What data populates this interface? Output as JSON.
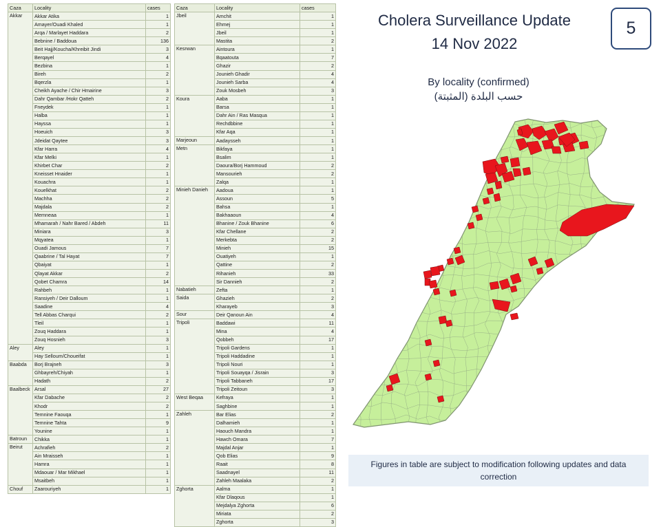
{
  "title": {
    "line1": "Cholera Surveillance Update",
    "line2": "14 Nov 2022"
  },
  "page_number": "5",
  "subtitle": {
    "en": "By locality (confirmed)",
    "ar": "حسب البلدة (المثبتة)"
  },
  "note": "Figures in table are subject to modification following updates and data correction",
  "colors": {
    "affected": "#e8161d",
    "unaffected": "#c6ef9b",
    "border": "#8c9d7c"
  },
  "table_headers": [
    "Caza",
    "Locality",
    "cases"
  ],
  "table_left": [
    {
      "caza": "Akkar",
      "rows": [
        {
          "locality": "Akkar Atika",
          "cases": 1
        },
        {
          "locality": "Amayer/Ouadi Khaled",
          "cases": 1
        },
        {
          "locality": "Arqa / Marlayet Haddara",
          "cases": 2
        },
        {
          "locality": "Bebnine / Baddoua",
          "cases": 136
        },
        {
          "locality": "Beit Hajj/Koucha/Khreibit Jindi",
          "cases": 3
        },
        {
          "locality": "Berqayel",
          "cases": 4
        },
        {
          "locality": "Bezbina",
          "cases": 1
        },
        {
          "locality": "Bireh",
          "cases": 2
        },
        {
          "locality": "Bqerzla",
          "cases": 1
        },
        {
          "locality": "Cheikh Ayache / Chir Hmairine",
          "cases": 3
        },
        {
          "locality": "Dahr Qambar /Hokr Qatteh",
          "cases": 2
        },
        {
          "locality": "Fneydek",
          "cases": 1
        },
        {
          "locality": "Halba",
          "cases": 1
        },
        {
          "locality": "Hayssa",
          "cases": 1
        },
        {
          "locality": "Hoeuich",
          "cases": 3
        },
        {
          "locality": "Jdeidat Qaytee",
          "cases": 3
        },
        {
          "locality": "Kfar Harra",
          "cases": 4
        },
        {
          "locality": "Kfar Melki",
          "cases": 1
        },
        {
          "locality": "Khirbet Char",
          "cases": 2
        },
        {
          "locality": "Kneisset Hnaider",
          "cases": 1
        },
        {
          "locality": "Kouachra",
          "cases": 1
        },
        {
          "locality": "Kouelkhat",
          "cases": 2
        },
        {
          "locality": "Machha",
          "cases": 2
        },
        {
          "locality": "Majdala",
          "cases": 2
        },
        {
          "locality": "Memneaa",
          "cases": 1
        },
        {
          "locality": "Mhamarah / Nahr Bared / Abdeh",
          "cases": 11
        },
        {
          "locality": "Miniara",
          "cases": 3
        },
        {
          "locality": "Mqyatea",
          "cases": 1
        },
        {
          "locality": "Ouadi Jamous",
          "cases": 7
        },
        {
          "locality": "Qaabrine / Tal Hayat",
          "cases": 7
        },
        {
          "locality": "Qbaiyat",
          "cases": 1
        },
        {
          "locality": "Qlayat Akkar",
          "cases": 2
        },
        {
          "locality": "Qobet Chamra",
          "cases": 14
        },
        {
          "locality": "Rahbeh",
          "cases": 1
        },
        {
          "locality": "Ransiyeh / Deir Dalloum",
          "cases": 1
        },
        {
          "locality": "Saadine",
          "cases": 4
        },
        {
          "locality": "Tell Abbas Charqui",
          "cases": 2
        },
        {
          "locality": "Tleil",
          "cases": 1
        },
        {
          "locality": "Zouq Haddara",
          "cases": 1
        },
        {
          "locality": "Zouq Hosnieh",
          "cases": 3
        }
      ]
    },
    {
      "caza": "Aley",
      "rows": [
        {
          "locality": "Aley",
          "cases": 1
        },
        {
          "locality": "Hay Selloum/Choueifat",
          "cases": 1
        }
      ]
    },
    {
      "caza": "Baabda",
      "rows": [
        {
          "locality": "Borj Brajneh",
          "cases": 3
        },
        {
          "locality": "Ghbayreh/Chiyah",
          "cases": 1
        },
        {
          "locality": "Hadath",
          "cases": 2
        }
      ]
    },
    {
      "caza": "Baalbeck",
      "rows": [
        {
          "locality": "Arsal",
          "cases": 27
        },
        {
          "locality": "Kfar Dabache",
          "cases": 2
        },
        {
          "locality": "Khodr",
          "cases": 2
        },
        {
          "locality": "Temnine Faouqa",
          "cases": 1
        },
        {
          "locality": "Temnine Tahta",
          "cases": 9
        },
        {
          "locality": "Younine",
          "cases": 1
        }
      ]
    },
    {
      "caza": "Batroun",
      "rows": [
        {
          "locality": "Chikka",
          "cases": 1
        }
      ]
    },
    {
      "caza": "Beirut",
      "rows": [
        {
          "locality": "Achrafieh",
          "cases": 2
        },
        {
          "locality": "Ain Mraisseh",
          "cases": 1
        },
        {
          "locality": "Hamra",
          "cases": 1
        },
        {
          "locality": "Mdaouar / Mar Mikhael",
          "cases": 1
        },
        {
          "locality": "Msaitbeh",
          "cases": 1
        }
      ]
    },
    {
      "caza": "Chouf",
      "rows": [
        {
          "locality": "Zaarouriyeh",
          "cases": 1
        }
      ]
    }
  ],
  "table_right": [
    {
      "caza": "Jbeil",
      "rows": [
        {
          "locality": "Amchit",
          "cases": 1
        },
        {
          "locality": "Ehmej",
          "cases": 1
        },
        {
          "locality": "Jbeil",
          "cases": 1
        },
        {
          "locality": "Mastita",
          "cases": 2
        }
      ]
    },
    {
      "caza": "Kesrwan",
      "rows": [
        {
          "locality": "Aintoura",
          "cases": 1
        },
        {
          "locality": "Bqaatouta",
          "cases": 7
        },
        {
          "locality": "Ghazir",
          "cases": 2
        },
        {
          "locality": "Jounieh Ghadir",
          "cases": 4
        },
        {
          "locality": "Jounieh Sarba",
          "cases": 4
        },
        {
          "locality": "Zouk Mosbeh",
          "cases": 3
        }
      ]
    },
    {
      "caza": "Koura",
      "rows": [
        {
          "locality": "Aaba",
          "cases": 1
        },
        {
          "locality": "Barsa",
          "cases": 1
        },
        {
          "locality": "Dahr Ain / Ras Masqua",
          "cases": 1
        },
        {
          "locality": "Rechdbbine",
          "cases": 1
        },
        {
          "locality": "Kfar Aqa",
          "cases": 1
        }
      ]
    },
    {
      "caza": "Marjeoun",
      "rows": [
        {
          "locality": "Aadaysseh",
          "cases": 1
        }
      ]
    },
    {
      "caza": "Metn",
      "rows": [
        {
          "locality": "Bikfaya",
          "cases": 1
        },
        {
          "locality": "Bsalim",
          "cases": 1
        },
        {
          "locality": "Daoura/Borj Hammoud",
          "cases": 2
        },
        {
          "locality": "Mansourieh",
          "cases": 2
        },
        {
          "locality": "Zalqa",
          "cases": 1
        }
      ]
    },
    {
      "caza": "Minieh Danieh",
      "rows": [
        {
          "locality": "Aadoua",
          "cases": 1
        },
        {
          "locality": "Assoun",
          "cases": 5
        },
        {
          "locality": "Bahsa",
          "cases": 1
        },
        {
          "locality": "Bakhaaoun",
          "cases": 4
        },
        {
          "locality": "Bhanine / Zouk Bhanine",
          "cases": 6
        },
        {
          "locality": "Kfar Chellane",
          "cases": 2
        },
        {
          "locality": "Merkebta",
          "cases": 2
        },
        {
          "locality": "Minieh",
          "cases": 15
        },
        {
          "locality": "Ouatiyeh",
          "cases": 1
        },
        {
          "locality": "Qattine",
          "cases": 2
        },
        {
          "locality": "Rihanieh",
          "cases": 33
        },
        {
          "locality": "Sir Dannieh",
          "cases": 2
        }
      ]
    },
    {
      "caza": "Nabatieh",
      "rows": [
        {
          "locality": "Zefta",
          "cases": 1
        }
      ]
    },
    {
      "caza": "Saida",
      "rows": [
        {
          "locality": "Ghazieh",
          "cases": 2
        },
        {
          "locality": "Kharayeb",
          "cases": 3
        }
      ]
    },
    {
      "caza": "Sour",
      "rows": [
        {
          "locality": "Deir Qanoun Ain",
          "cases": 4
        }
      ]
    },
    {
      "caza": "Tripoli",
      "rows": [
        {
          "locality": "Baddawi",
          "cases": 11
        },
        {
          "locality": "Mina",
          "cases": 4
        },
        {
          "locality": "Qobbeh",
          "cases": 17
        },
        {
          "locality": "Tripoli Gardens",
          "cases": 1
        },
        {
          "locality": "Tripoli Haddadine",
          "cases": 1
        },
        {
          "locality": "Tripoli Nouri",
          "cases": 1
        },
        {
          "locality": "Tripoli Souayqa / Jisrain",
          "cases": 3
        },
        {
          "locality": "Tripoli Tabbaneh",
          "cases": 17
        },
        {
          "locality": "Tripoli Zeitoun",
          "cases": 3
        }
      ]
    },
    {
      "caza": "West Beqaa",
      "rows": [
        {
          "locality": "Kefraya",
          "cases": 1
        },
        {
          "locality": "Saghbine",
          "cases": 1
        }
      ]
    },
    {
      "caza": "Zahleh",
      "rows": [
        {
          "locality": "Bar Elias",
          "cases": 2
        },
        {
          "locality": "Dalhamieh",
          "cases": 1
        },
        {
          "locality": "Haouch Mandra",
          "cases": 1
        },
        {
          "locality": "Hawch Omara",
          "cases": 7
        },
        {
          "locality": "Majdal Anjar",
          "cases": 1
        },
        {
          "locality": "Qob Elias",
          "cases": 9
        },
        {
          "locality": "Raait",
          "cases": 8
        },
        {
          "locality": "Saadnayel",
          "cases": 11
        },
        {
          "locality": "Zahleh Maalaka",
          "cases": 2
        }
      ]
    },
    {
      "caza": "Zghorta",
      "rows": [
        {
          "locality": "Aalma",
          "cases": 1
        },
        {
          "locality": "Kfar Dlaqous",
          "cases": 1
        },
        {
          "locality": "Mejdalya Zghorta",
          "cases": 6
        },
        {
          "locality": "Miriata",
          "cases": 2
        },
        {
          "locality": "Zghorta",
          "cases": 3
        }
      ]
    }
  ]
}
